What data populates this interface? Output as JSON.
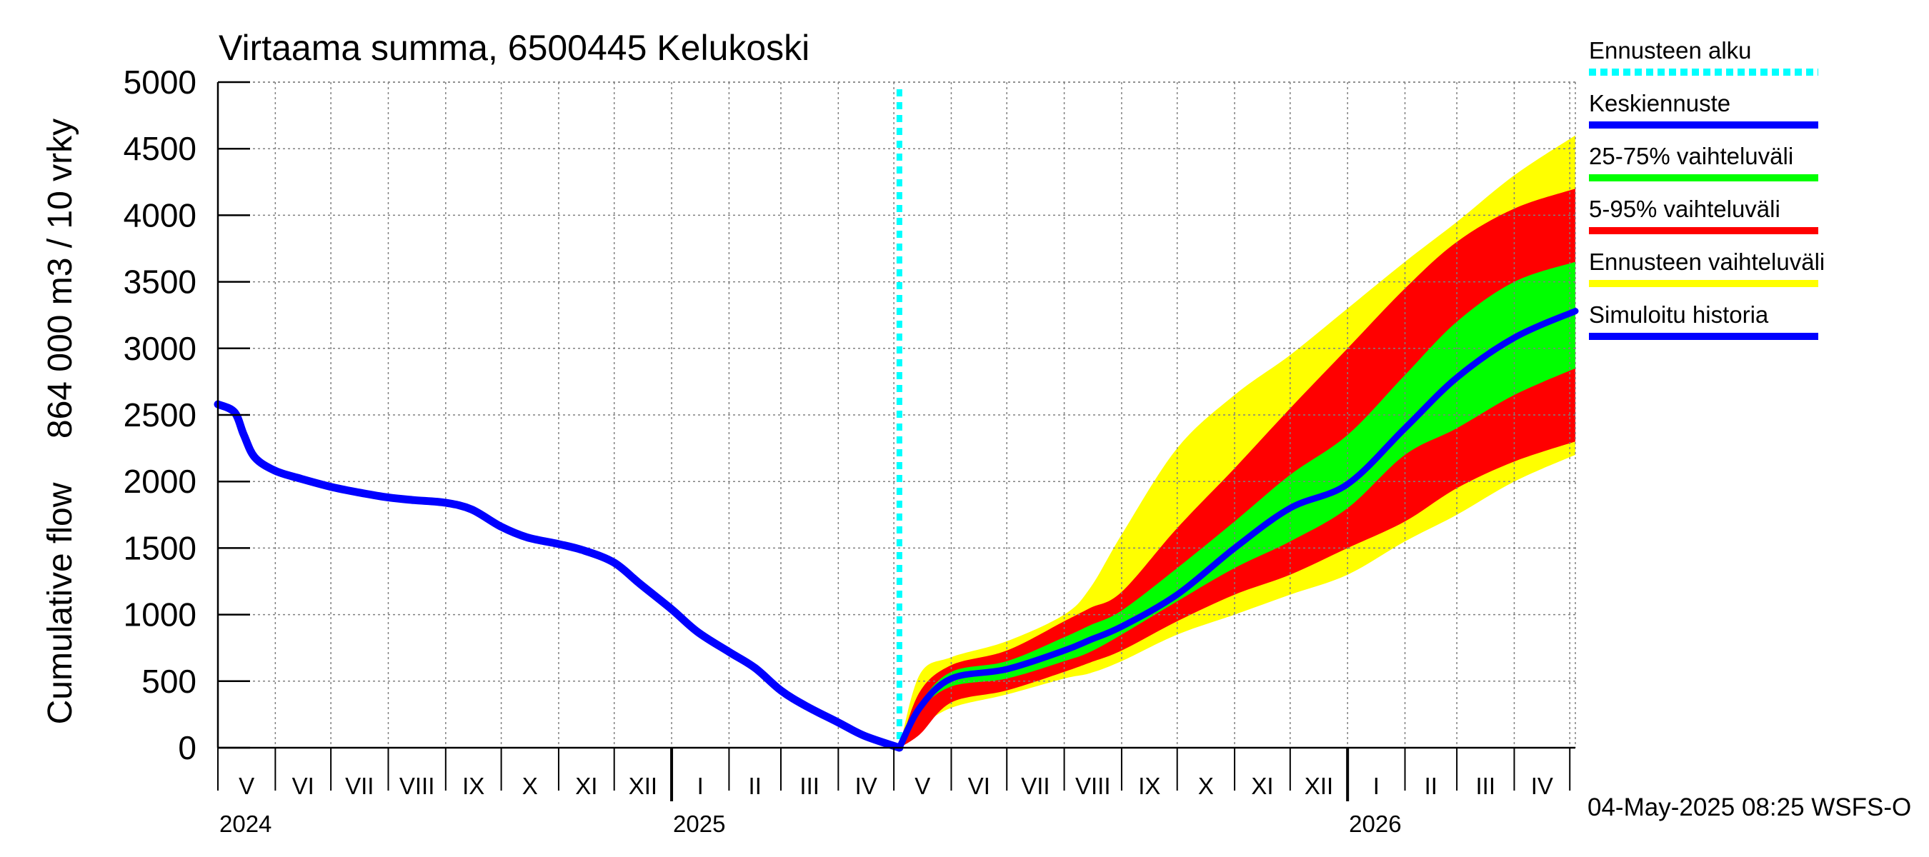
{
  "chart_data": {
    "type": "area",
    "title": "Virtaama summa, 6500445 Kelukoski",
    "ylabel_line1": "Cumulative flow",
    "ylabel_line2": "864 000 m3 / 10 vrky",
    "ylim": [
      0,
      5000
    ],
    "yticks": [
      0,
      500,
      1000,
      1500,
      2000,
      2500,
      3000,
      3500,
      4000,
      4500,
      5000
    ],
    "grid": true,
    "x_start": "2024-05-01",
    "x_end": "2026-05-04",
    "forecast_start": "2025-05-04",
    "month_labels": [
      "V",
      "VI",
      "VII",
      "VIII",
      "IX",
      "X",
      "XI",
      "XII",
      "I",
      "II",
      "III",
      "IV",
      "V",
      "VI",
      "VII",
      "VIII",
      "IX",
      "X",
      "XI",
      "XII",
      "I",
      "II",
      "III",
      "IV"
    ],
    "year_labels": [
      {
        "label": "2024",
        "date": "2024-05-01"
      },
      {
        "label": "2025",
        "date": "2025-01-01"
      },
      {
        "label": "2026",
        "date": "2026-01-01"
      }
    ],
    "legend": [
      {
        "label": "Ennusteen alku",
        "color": "#00ffff",
        "style": "dotted"
      },
      {
        "label": "Keskiennuste",
        "color": "#0000ff",
        "style": "solid"
      },
      {
        "label": "25-75% vaihteluväli",
        "color": "#00ff00",
        "style": "solid"
      },
      {
        "label": "5-95% vaihteluväli",
        "color": "#ff0000",
        "style": "solid"
      },
      {
        "label": "Ennusteen vaihteluväli",
        "color": "#ffff00",
        "style": "solid"
      },
      {
        "label": "Simuloitu historia",
        "color": "#0000ff",
        "style": "solid"
      }
    ],
    "legend_position": "right",
    "footer": "04-May-2025 08:25 WSFS-O",
    "colors": {
      "history": "#0000ff",
      "median": "#0000ff",
      "band_25_75": "#00ff00",
      "band_5_95": "#ff0000",
      "band_full": "#ffff00",
      "forecast_start": "#00ffff",
      "grid": "#808080"
    },
    "history": {
      "x": [
        "2024-05-01",
        "2024-05-10",
        "2024-05-15",
        "2024-05-21",
        "2024-06-01",
        "2024-06-15",
        "2024-07-01",
        "2024-07-15",
        "2024-08-01",
        "2024-08-15",
        "2024-09-01",
        "2024-09-15",
        "2024-10-01",
        "2024-10-15",
        "2024-11-01",
        "2024-11-15",
        "2024-12-01",
        "2024-12-15",
        "2025-01-01",
        "2025-01-15",
        "2025-02-01",
        "2025-02-15",
        "2025-03-01",
        "2025-03-15",
        "2025-04-01",
        "2025-04-15",
        "2025-05-04"
      ],
      "y": [
        2580,
        2520,
        2350,
        2180,
        2080,
        2020,
        1960,
        1920,
        1880,
        1860,
        1840,
        1790,
        1660,
        1580,
        1530,
        1480,
        1390,
        1230,
        1040,
        870,
        720,
        600,
        430,
        310,
        190,
        90,
        0
      ]
    },
    "forecast": {
      "x": [
        "2025-05-04",
        "2025-05-15",
        "2025-06-01",
        "2025-07-01",
        "2025-08-01",
        "2025-08-15",
        "2025-09-01",
        "2025-10-01",
        "2025-11-01",
        "2025-12-01",
        "2026-01-01",
        "2026-02-01",
        "2026-03-01",
        "2026-04-01",
        "2026-05-04"
      ],
      "full_low": [
        0,
        150,
        300,
        400,
        520,
        560,
        650,
        850,
        1000,
        1150,
        1300,
        1550,
        1750,
        2000,
        2200
      ],
      "p5": [
        0,
        100,
        340,
        430,
        570,
        640,
        730,
        950,
        1150,
        1300,
        1500,
        1700,
        1950,
        2150,
        2300
      ],
      "p25": [
        0,
        280,
        460,
        520,
        650,
        720,
        850,
        1100,
        1350,
        1550,
        1800,
        2200,
        2400,
        2650,
        2850
      ],
      "median": [
        0,
        300,
        520,
        590,
        730,
        810,
        910,
        1150,
        1500,
        1800,
        1980,
        2400,
        2780,
        3080,
        3280
      ],
      "p75": [
        0,
        330,
        570,
        650,
        830,
        920,
        1030,
        1350,
        1700,
        2050,
        2350,
        2800,
        3200,
        3500,
        3650
      ],
      "p95": [
        0,
        420,
        620,
        730,
        950,
        1050,
        1170,
        1650,
        2100,
        2550,
        3000,
        3450,
        3800,
        4050,
        4200
      ],
      "full_high": [
        0,
        550,
        680,
        800,
        1000,
        1200,
        1600,
        2250,
        2650,
        2950,
        3300,
        3650,
        3950,
        4300,
        4600
      ]
    }
  }
}
